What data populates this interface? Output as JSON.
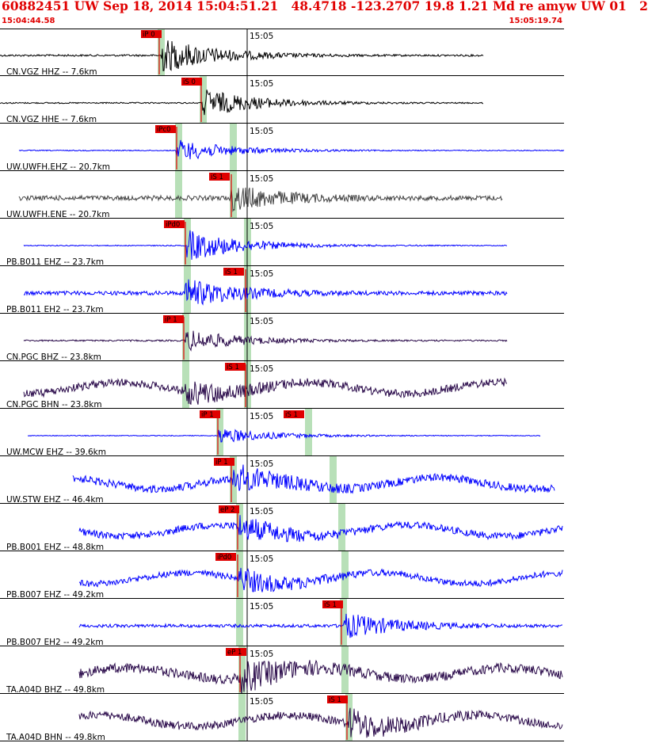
{
  "header": {
    "title": "60882451 UW Sep 18, 2014 15:04:51.21   48.4718 -123.2707 19.8 1.21 Md re amyw UW 01   2",
    "start_time": "15:04:44.58",
    "end_time": "15:05:19.74"
  },
  "tick_label": "15:05",
  "colors": {
    "red": "#e00000",
    "green": "#b8e0b8",
    "blue": "#0000ff",
    "black": "#000000",
    "gray": "#444444",
    "purple": "#2a0a4a"
  },
  "traces": [
    {
      "label": "CN.VGZ HHZ -- 7.6km",
      "pick": "iP 0",
      "color": "#000000"
    },
    {
      "label": "CN.VGZ HHE -- 7.6km",
      "pick": "iS 0",
      "color": "#000000"
    },
    {
      "label": "UW.UWFH.EHZ -- 20.7km",
      "pick": "iPc0",
      "color": "#0000ff"
    },
    {
      "label": "UW.UWFH.ENE -- 20.7km",
      "pick": "iS 1",
      "color": "#444444"
    },
    {
      "label": "PB.B011 EHZ -- 23.7km",
      "pick": "iPd0",
      "color": "#0000ff"
    },
    {
      "label": "PB.B011 EH2 -- 23.7km",
      "pick": "iS 1",
      "color": "#0000ff"
    },
    {
      "label": "CN.PGC BHZ -- 23.8km",
      "pick": "iP 1",
      "color": "#2a0a4a"
    },
    {
      "label": "CN.PGC BHN -- 23.8km",
      "pick": "iS 1",
      "color": "#2a0a4a"
    },
    {
      "label": "UW.MCW EHZ -- 39.6km",
      "pick": "iP 1",
      "pick2": "iS 1",
      "color": "#0000ff"
    },
    {
      "label": "UW.STW EHZ -- 46.4km",
      "pick": "iP 1",
      "color": "#0000ff"
    },
    {
      "label": "PB.B001 EHZ -- 48.8km",
      "pick": "eP 2",
      "color": "#0000ff"
    },
    {
      "label": "PB.B007 EHZ -- 49.2km",
      "pick": "iPd0",
      "color": "#0000ff"
    },
    {
      "label": "PB.B007 EH2 -- 49.2km",
      "pick": "iS 1",
      "color": "#0000ff"
    },
    {
      "label": "TA.A04D BHZ -- 49.8km",
      "pick": "eP 1",
      "color": "#2a0a4a"
    },
    {
      "label": "TA.A04D BHN -- 49.8km",
      "pick": "iS 1",
      "color": "#2a0a4a"
    }
  ]
}
